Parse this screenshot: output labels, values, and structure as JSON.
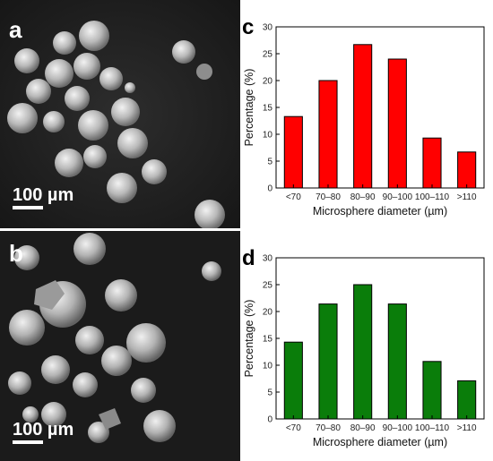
{
  "panels": {
    "a": {
      "letter": "a",
      "scale_bar": "100 µm"
    },
    "b": {
      "letter": "b",
      "scale_bar": "100 µm"
    }
  },
  "chart_data": [
    {
      "letter": "c",
      "type": "bar",
      "categories": [
        "<70",
        "70–80",
        "80–90",
        "90–100",
        "100–110",
        ">110"
      ],
      "values": [
        13.3,
        20.0,
        26.7,
        24.0,
        9.3,
        6.7
      ],
      "xlabel": "Microsphere diameter (µm)",
      "ylabel": "Percentage (%)",
      "ylim": [
        0,
        30
      ],
      "yticks": [
        0,
        5,
        10,
        15,
        20,
        25,
        30
      ],
      "bar_color": "#ff0000",
      "grid": false
    },
    {
      "letter": "d",
      "type": "bar",
      "categories": [
        "<70",
        "70–80",
        "80–90",
        "90–100",
        "100–110",
        ">110"
      ],
      "values": [
        14.3,
        21.4,
        25.0,
        21.4,
        10.7,
        7.1
      ],
      "xlabel": "Microsphere diameter (µm)",
      "ylabel": "Percentage (%)",
      "ylim": [
        0,
        30
      ],
      "yticks": [
        0,
        5,
        10,
        15,
        20,
        25,
        30
      ],
      "bar_color": "#0a7d0a",
      "grid": false
    }
  ]
}
